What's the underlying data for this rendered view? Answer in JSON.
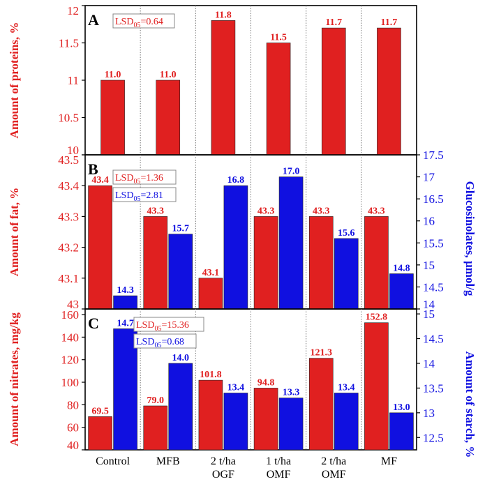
{
  "colors": {
    "red": "#e02020",
    "blue": "#1010e0",
    "frame": "#000000",
    "sep": "#777777"
  },
  "categories": [
    "Control",
    "MFB",
    "2 t/ha OGF",
    "1 t/ha OMF",
    "2 t/ha OMF",
    "MF"
  ],
  "x_labels": [
    {
      "line1": "Control",
      "line2": ""
    },
    {
      "line1": "MFB",
      "line2": ""
    },
    {
      "line1": "2 t/ha",
      "line2": "OGF"
    },
    {
      "line1": "1 t/ha",
      "line2": "OMF"
    },
    {
      "line1": "2 t/ha",
      "line2": "OMF"
    },
    {
      "line1": "MF",
      "line2": ""
    }
  ],
  "chart_data": [
    {
      "type": "bar",
      "panel": "A",
      "categories": [
        "Control",
        "MFB",
        "2 t/ha OGF",
        "1 t/ha OMF",
        "2 t/ha OMF",
        "MF"
      ],
      "ylabel": "Amount of proteins, %",
      "ylim": [
        10,
        12
      ],
      "yticks": [
        "10",
        "10.5",
        "11",
        "11.5",
        "12"
      ],
      "series": [
        {
          "name": "Proteins",
          "color": "red",
          "values": [
            11.0,
            11.0,
            11.8,
            11.5,
            11.7,
            11.7
          ],
          "labels": [
            "11.0",
            "11.0",
            "11.8",
            "11.5",
            "11.7",
            "11.7"
          ]
        }
      ],
      "lsd": [
        {
          "base": "LSD",
          "sub": "05",
          "text": "=0.64",
          "color": "red"
        }
      ]
    },
    {
      "type": "bar",
      "panel": "B",
      "categories": [
        "Control",
        "MFB",
        "2 t/ha OGF",
        "1 t/ha OMF",
        "2 t/ha OMF",
        "MF"
      ],
      "ylabel": "Amount of fat, %",
      "ylim": [
        43,
        43.5
      ],
      "yticks": [
        "43",
        "43.1",
        "43.2",
        "43.3",
        "43.4",
        "43.5"
      ],
      "y2label": "Glucosinolates, µmol/g",
      "y2lim": [
        14,
        17.5
      ],
      "y2ticks": [
        "14",
        "14.5",
        "15",
        "15.5",
        "16",
        "16.5",
        "17",
        "17.5"
      ],
      "series": [
        {
          "name": "Fat",
          "color": "red",
          "axis": "left",
          "values": [
            43.4,
            43.3,
            43.1,
            43.3,
            43.3,
            43.3
          ],
          "labels": [
            "43.4",
            "43.3",
            "43.1",
            "43.3",
            "43.3",
            "43.3"
          ]
        },
        {
          "name": "Glucosinolates",
          "color": "blue",
          "axis": "right",
          "values": [
            14.3,
            15.7,
            16.8,
            17.0,
            15.6,
            14.8
          ],
          "labels": [
            "14.3",
            "15.7",
            "16.8",
            "17.0",
            "15.6",
            "14.8"
          ]
        }
      ],
      "lsd": [
        {
          "base": "LSD",
          "sub": "05",
          "text": "=1.36",
          "color": "red"
        },
        {
          "base": "LSD",
          "sub": "05",
          "text": "=2.81",
          "color": "blue"
        }
      ]
    },
    {
      "type": "bar",
      "panel": "C",
      "categories": [
        "Control",
        "MFB",
        "2 t/ha OGF",
        "1 t/ha OMF",
        "2 t/ha OMF",
        "MF"
      ],
      "ylabel": "Amount of nitrates, mg/kg",
      "ylim": [
        40,
        165
      ],
      "yticks": [
        "40",
        "60",
        "80",
        "100",
        "120",
        "140",
        "160"
      ],
      "y2label": "Amount of starch, %",
      "y2lim": [
        12.25,
        15.1
      ],
      "y2ticks": [
        "12.5",
        "13",
        "13.5",
        "14",
        "14.5",
        "15"
      ],
      "series": [
        {
          "name": "Nitrates",
          "color": "red",
          "axis": "left",
          "values": [
            69.5,
            79.0,
            101.8,
            94.8,
            121.3,
            152.8
          ],
          "labels": [
            "69.5",
            "79.0",
            "101.8",
            "94.8",
            "121.3",
            "152.8"
          ]
        },
        {
          "name": "Starch",
          "color": "blue",
          "axis": "right",
          "values": [
            14.7,
            14.0,
            13.4,
            13.3,
            13.4,
            13.0
          ],
          "labels": [
            "14.7",
            "14.0",
            "13.4",
            "13.3",
            "13.4",
            "13.0"
          ]
        }
      ],
      "lsd": [
        {
          "base": "LSD",
          "sub": "05",
          "text": "=15.36",
          "color": "red"
        },
        {
          "base": "LSD",
          "sub": "05",
          "text": "=0.68",
          "color": "blue"
        }
      ]
    }
  ]
}
